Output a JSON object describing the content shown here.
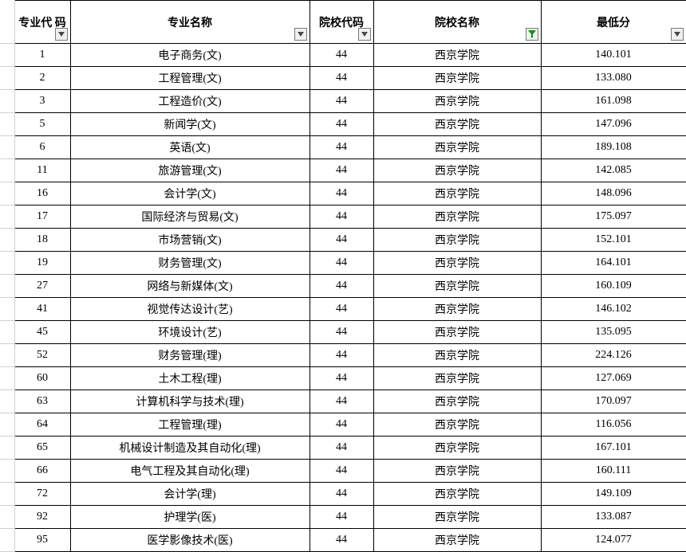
{
  "headers": {
    "col_a": "专业代\n码",
    "col_b": "专业名称",
    "col_c": "院校代码",
    "col_d": "院校名称",
    "col_e": "最低分"
  },
  "colors": {
    "border": "#000000",
    "filter_border": "#7a7a7a",
    "filter_bg": "#f0f0f0",
    "filter_active_bg": "#e8f5e8",
    "arrow_fill": "#484848",
    "funnel_fill": "#1e8a1e"
  },
  "rows": [
    {
      "code": "1",
      "major": "电子商务(文)",
      "school_code": "44",
      "school": "西京学院",
      "score": "140.101"
    },
    {
      "code": "2",
      "major": "工程管理(文)",
      "school_code": "44",
      "school": "西京学院",
      "score": "133.080"
    },
    {
      "code": "3",
      "major": "工程造价(文)",
      "school_code": "44",
      "school": "西京学院",
      "score": "161.098"
    },
    {
      "code": "5",
      "major": "新闻学(文)",
      "school_code": "44",
      "school": "西京学院",
      "score": "147.096"
    },
    {
      "code": "6",
      "major": "英语(文)",
      "school_code": "44",
      "school": "西京学院",
      "score": "189.108"
    },
    {
      "code": "11",
      "major": "旅游管理(文)",
      "school_code": "44",
      "school": "西京学院",
      "score": "142.085"
    },
    {
      "code": "16",
      "major": "会计学(文)",
      "school_code": "44",
      "school": "西京学院",
      "score": "148.096"
    },
    {
      "code": "17",
      "major": "国际经济与贸易(文)",
      "school_code": "44",
      "school": "西京学院",
      "score": "175.097"
    },
    {
      "code": "18",
      "major": "市场营销(文)",
      "school_code": "44",
      "school": "西京学院",
      "score": "152.101"
    },
    {
      "code": "19",
      "major": "财务管理(文)",
      "school_code": "44",
      "school": "西京学院",
      "score": "164.101"
    },
    {
      "code": "27",
      "major": "网络与新媒体(文)",
      "school_code": "44",
      "school": "西京学院",
      "score": "160.109"
    },
    {
      "code": "41",
      "major": "视觉传达设计(艺)",
      "school_code": "44",
      "school": "西京学院",
      "score": "146.102"
    },
    {
      "code": "45",
      "major": "环境设计(艺)",
      "school_code": "44",
      "school": "西京学院",
      "score": "135.095"
    },
    {
      "code": "52",
      "major": "财务管理(理)",
      "school_code": "44",
      "school": "西京学院",
      "score": "224.126"
    },
    {
      "code": "60",
      "major": "土木工程(理)",
      "school_code": "44",
      "school": "西京学院",
      "score": "127.069"
    },
    {
      "code": "63",
      "major": "计算机科学与技术(理)",
      "school_code": "44",
      "school": "西京学院",
      "score": "170.097"
    },
    {
      "code": "64",
      "major": "工程管理(理)",
      "school_code": "44",
      "school": "西京学院",
      "score": "116.056"
    },
    {
      "code": "65",
      "major": "机械设计制造及其自动化(理)",
      "school_code": "44",
      "school": "西京学院",
      "score": "167.101"
    },
    {
      "code": "66",
      "major": "电气工程及其自动化(理)",
      "school_code": "44",
      "school": "西京学院",
      "score": "160.111"
    },
    {
      "code": "72",
      "major": "会计学(理)",
      "school_code": "44",
      "school": "西京学院",
      "score": "149.109"
    },
    {
      "code": "92",
      "major": "护理学(医)",
      "school_code": "44",
      "school": "西京学院",
      "score": "133.087"
    },
    {
      "code": "95",
      "major": "医学影像技术(医)",
      "school_code": "44",
      "school": "西京学院",
      "score": "124.077"
    }
  ]
}
